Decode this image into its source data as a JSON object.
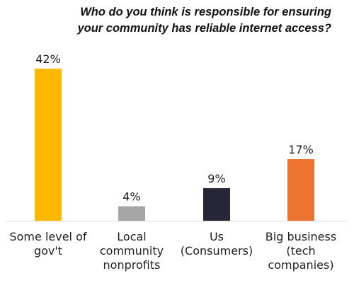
{
  "chart_data": {
    "type": "bar",
    "title": "Who do you think is responsible for ensuring\nyour community has reliable internet access?",
    "xlabel": "",
    "ylabel": "",
    "ylim": [
      0,
      42
    ],
    "grid": false,
    "legend": "none",
    "categories": [
      [
        "Some level of",
        "gov't"
      ],
      [
        "Local",
        "community",
        "nonprofits"
      ],
      [
        "Us",
        "(Consumers)"
      ],
      [
        "Big business",
        "(tech",
        "companies)"
      ]
    ],
    "values": [
      42,
      4,
      9,
      17
    ],
    "value_labels": [
      "42%",
      "4%",
      "9%",
      "17%"
    ],
    "colors": [
      "#FFB800",
      "#A6A6A6",
      "#262637",
      "#ED7330"
    ],
    "axis_color": "#D9D9D9"
  }
}
